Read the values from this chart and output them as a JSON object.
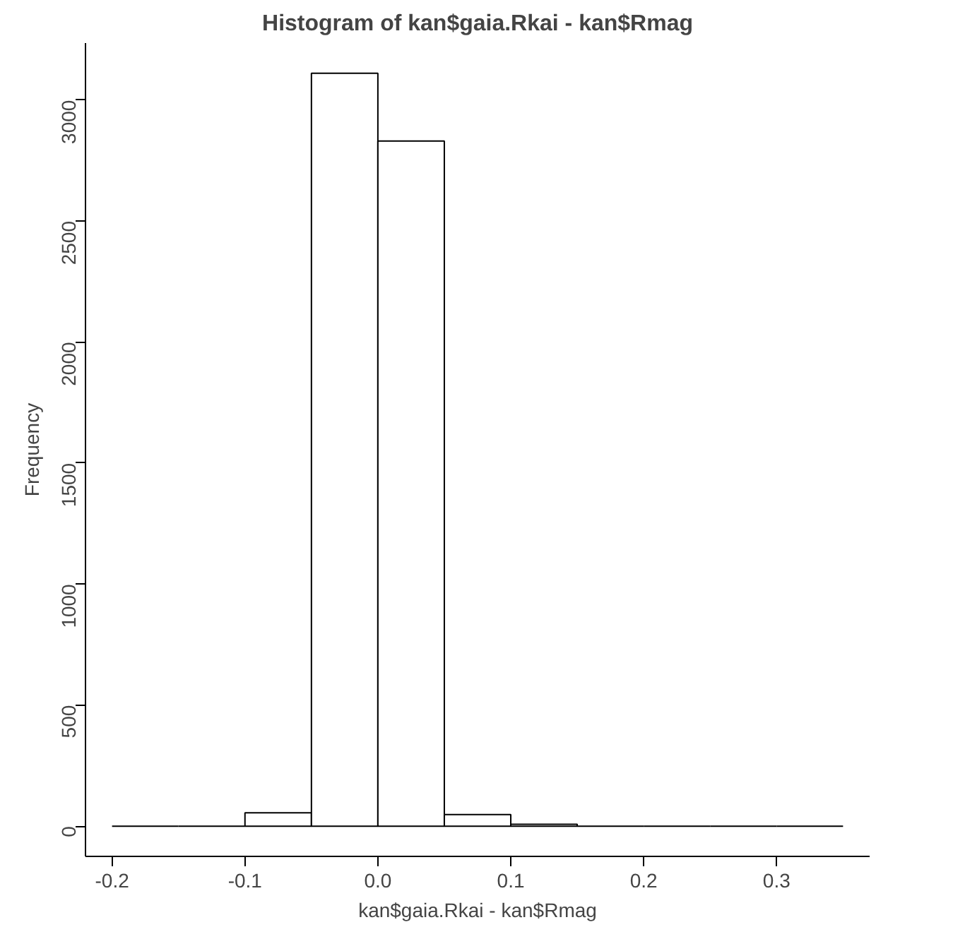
{
  "chart_data": {
    "type": "histogram",
    "title": "Histogram of kan$gaia.Rkai - kan$Rmag",
    "xlabel": "kan$gaia.Rkai - kan$Rmag",
    "ylabel": "Frequency",
    "bins": [
      -0.2,
      -0.15,
      -0.1,
      -0.05,
      0,
      0.05,
      0.1,
      0.15,
      0.2,
      0.25,
      0.3,
      0.35
    ],
    "values": [
      0,
      0,
      55,
      3110,
      2830,
      48,
      8,
      0,
      0,
      0,
      0
    ],
    "color": "#000000",
    "xlim": [
      -0.22,
      0.37
    ],
    "ylim": [
      -125,
      3235
    ],
    "xticks": [
      {
        "value": -0.2,
        "label": "-0.2"
      },
      {
        "value": -0.1,
        "label": "-0.1"
      },
      {
        "value": 0,
        "label": "0.0"
      },
      {
        "value": 0.1,
        "label": "0.1"
      },
      {
        "value": 0.2,
        "label": "0.2"
      },
      {
        "value": 0.3,
        "label": "0.3"
      }
    ],
    "yticks": [
      0,
      500,
      1000,
      1500,
      2000,
      2500,
      3000
    ],
    "grid": false
  }
}
